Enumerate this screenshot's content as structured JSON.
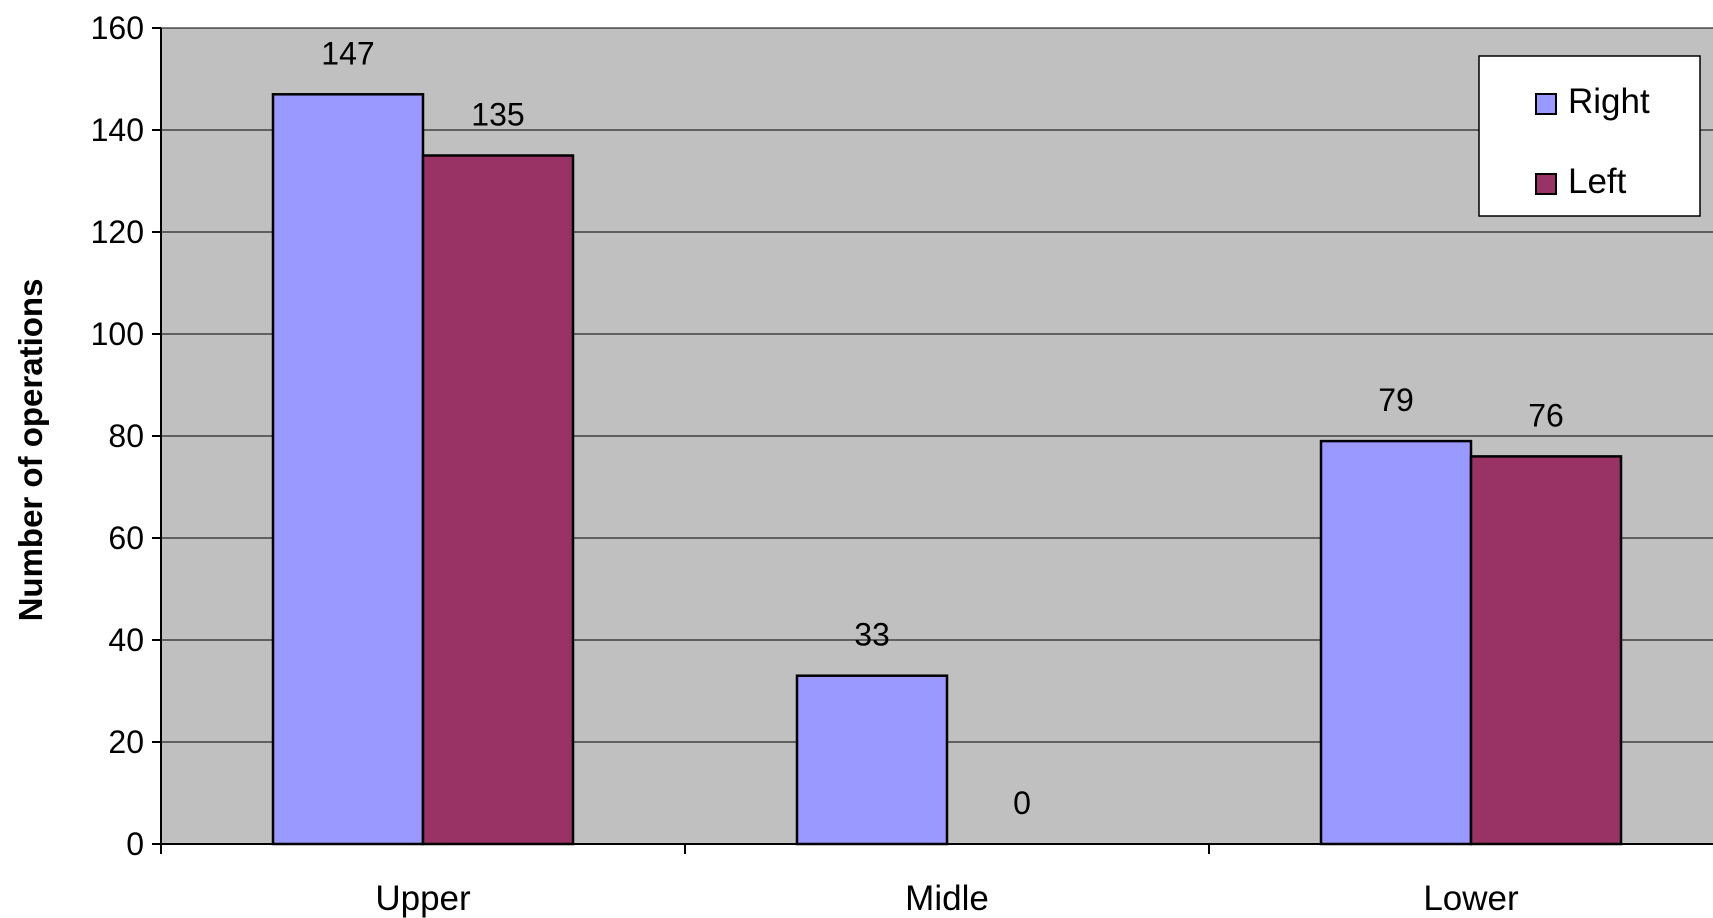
{
  "chart_data": {
    "type": "bar",
    "title": "",
    "xlabel": "",
    "ylabel": "Number of operations",
    "categories": [
      "Upper",
      "Midle",
      "Lower"
    ],
    "series": [
      {
        "name": "Right",
        "values": [
          147,
          33,
          79
        ],
        "color": "#9999ff"
      },
      {
        "name": "Left",
        "values": [
          135,
          0,
          76
        ],
        "color": "#993366"
      }
    ],
    "ylim": [
      0,
      160
    ],
    "yticks": [
      0,
      20,
      40,
      60,
      80,
      100,
      120,
      140,
      160
    ],
    "grid": true,
    "legend_position": "top-right",
    "plot_background": "#c0c0c0"
  }
}
